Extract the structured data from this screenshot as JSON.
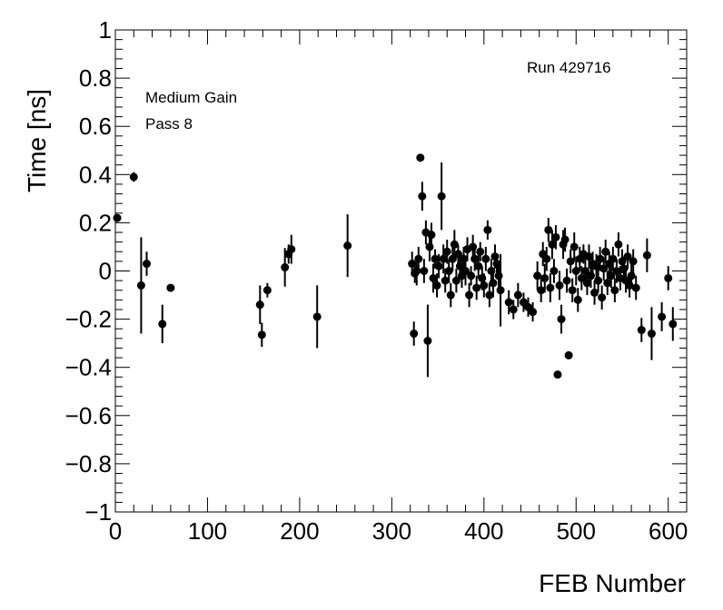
{
  "chart_data": {
    "type": "scatter",
    "xlabel": "FEB Number",
    "ylabel": "Time [ns]",
    "xlim": [
      0,
      620
    ],
    "ylim": [
      -1,
      1
    ],
    "x_ticks": [
      0,
      100,
      200,
      300,
      400,
      500,
      600
    ],
    "y_ticks": [
      -1,
      -0.8,
      -0.6,
      -0.4,
      -0.2,
      0,
      0.2,
      0.4,
      0.6,
      0.8,
      1
    ],
    "grid": false,
    "legend": "none",
    "annotations": [
      "Run 429716",
      "Medium Gain",
      "Pass 8"
    ],
    "marker_color": "#000000",
    "points": [
      {
        "x": 2,
        "y": 0.22,
        "err": 0.0
      },
      {
        "x": 20,
        "y": 0.39,
        "err": 0.02
      },
      {
        "x": 28,
        "y": -0.06,
        "err": 0.2
      },
      {
        "x": 34,
        "y": 0.03,
        "err": 0.05
      },
      {
        "x": 51,
        "y": -0.22,
        "err": 0.08
      },
      {
        "x": 60,
        "y": -0.07,
        "err": 0.0
      },
      {
        "x": 157,
        "y": -0.14,
        "err": 0.08
      },
      {
        "x": 159,
        "y": -0.265,
        "err": 0.05
      },
      {
        "x": 165,
        "y": -0.08,
        "err": 0.03
      },
      {
        "x": 184,
        "y": 0.015,
        "err": 0.08
      },
      {
        "x": 188,
        "y": 0.07,
        "err": 0.04
      },
      {
        "x": 191,
        "y": 0.09,
        "err": 0.06
      },
      {
        "x": 219,
        "y": -0.19,
        "err": 0.13
      },
      {
        "x": 252,
        "y": 0.105,
        "err": 0.13
      },
      {
        "x": 322,
        "y": 0.03,
        "err": 0.05
      },
      {
        "x": 324,
        "y": -0.26,
        "err": 0.05
      },
      {
        "x": 325,
        "y": -0.01,
        "err": 0.04
      },
      {
        "x": 327,
        "y": 0.0,
        "err": 0.06
      },
      {
        "x": 329,
        "y": 0.05,
        "err": 0.05
      },
      {
        "x": 331,
        "y": 0.47,
        "err": 0.0
      },
      {
        "x": 333,
        "y": 0.31,
        "err": 0.06
      },
      {
        "x": 335,
        "y": 0.0,
        "err": 0.05
      },
      {
        "x": 337,
        "y": 0.16,
        "err": 0.05
      },
      {
        "x": 339,
        "y": -0.29,
        "err": 0.15
      },
      {
        "x": 341,
        "y": 0.1,
        "err": 0.06
      },
      {
        "x": 343,
        "y": 0.15,
        "err": 0.05
      },
      {
        "x": 345,
        "y": -0.03,
        "err": 0.06
      },
      {
        "x": 347,
        "y": 0.05,
        "err": 0.04
      },
      {
        "x": 349,
        "y": -0.06,
        "err": 0.05
      },
      {
        "x": 351,
        "y": 0.02,
        "err": 0.05
      },
      {
        "x": 354,
        "y": 0.31,
        "err": 0.14
      },
      {
        "x": 356,
        "y": 0.05,
        "err": 0.06
      },
      {
        "x": 358,
        "y": -0.04,
        "err": 0.05
      },
      {
        "x": 360,
        "y": 0.08,
        "err": 0.05
      },
      {
        "x": 362,
        "y": 0.0,
        "err": 0.05
      },
      {
        "x": 364,
        "y": -0.1,
        "err": 0.05
      },
      {
        "x": 366,
        "y": 0.05,
        "err": 0.05
      },
      {
        "x": 368,
        "y": 0.11,
        "err": 0.06
      },
      {
        "x": 370,
        "y": -0.04,
        "err": 0.05
      },
      {
        "x": 372,
        "y": 0.07,
        "err": 0.04
      },
      {
        "x": 374,
        "y": 0.02,
        "err": 0.05
      },
      {
        "x": 376,
        "y": -0.02,
        "err": 0.05
      },
      {
        "x": 378,
        "y": 0.05,
        "err": 0.05
      },
      {
        "x": 380,
        "y": 0.0,
        "err": 0.06
      },
      {
        "x": 382,
        "y": 0.09,
        "err": 0.05
      },
      {
        "x": 384,
        "y": -0.1,
        "err": 0.05
      },
      {
        "x": 386,
        "y": -0.02,
        "err": 0.04
      },
      {
        "x": 388,
        "y": 0.1,
        "err": 0.05
      },
      {
        "x": 390,
        "y": 0.05,
        "err": 0.05
      },
      {
        "x": 392,
        "y": -0.07,
        "err": 0.05
      },
      {
        "x": 394,
        "y": 0.02,
        "err": 0.05
      },
      {
        "x": 396,
        "y": 0.08,
        "err": 0.04
      },
      {
        "x": 398,
        "y": -0.03,
        "err": 0.05
      },
      {
        "x": 400,
        "y": -0.06,
        "err": 0.05
      },
      {
        "x": 402,
        "y": 0.05,
        "err": 0.05
      },
      {
        "x": 404,
        "y": 0.17,
        "err": 0.04
      },
      {
        "x": 406,
        "y": -0.1,
        "err": 0.05
      },
      {
        "x": 408,
        "y": 0.0,
        "err": 0.05
      },
      {
        "x": 410,
        "y": -0.05,
        "err": 0.06
      },
      {
        "x": 412,
        "y": 0.06,
        "err": 0.05
      },
      {
        "x": 414,
        "y": 0.03,
        "err": 0.04
      },
      {
        "x": 416,
        "y": -0.02,
        "err": 0.06
      },
      {
        "x": 418,
        "y": -0.08,
        "err": 0.15
      },
      {
        "x": 427,
        "y": -0.13,
        "err": 0.05
      },
      {
        "x": 432,
        "y": -0.16,
        "err": 0.04
      },
      {
        "x": 437,
        "y": -0.1,
        "err": 0.05
      },
      {
        "x": 443,
        "y": -0.13,
        "err": 0.04
      },
      {
        "x": 448,
        "y": -0.15,
        "err": 0.04
      },
      {
        "x": 453,
        "y": -0.17,
        "err": 0.04
      },
      {
        "x": 458,
        "y": -0.02,
        "err": 0.06
      },
      {
        "x": 462,
        "y": -0.08,
        "err": 0.05
      },
      {
        "x": 464,
        "y": 0.07,
        "err": 0.05
      },
      {
        "x": 466,
        "y": -0.03,
        "err": 0.06
      },
      {
        "x": 468,
        "y": 0.05,
        "err": 0.05
      },
      {
        "x": 470,
        "y": 0.17,
        "err": 0.05
      },
      {
        "x": 472,
        "y": -0.07,
        "err": 0.06
      },
      {
        "x": 474,
        "y": 0.11,
        "err": 0.06
      },
      {
        "x": 476,
        "y": 0.0,
        "err": 0.05
      },
      {
        "x": 478,
        "y": 0.14,
        "err": 0.05
      },
      {
        "x": 480,
        "y": -0.43,
        "err": 0.0
      },
      {
        "x": 482,
        "y": -0.06,
        "err": 0.06
      },
      {
        "x": 484,
        "y": -0.2,
        "err": 0.06
      },
      {
        "x": 486,
        "y": 0.11,
        "err": 0.06
      },
      {
        "x": 488,
        "y": 0.13,
        "err": 0.05
      },
      {
        "x": 490,
        "y": -0.04,
        "err": 0.05
      },
      {
        "x": 492,
        "y": -0.35,
        "err": 0.0
      },
      {
        "x": 494,
        "y": 0.04,
        "err": 0.05
      },
      {
        "x": 496,
        "y": -0.08,
        "err": 0.05
      },
      {
        "x": 498,
        "y": 0.1,
        "err": 0.06
      },
      {
        "x": 500,
        "y": 0.0,
        "err": 0.06
      },
      {
        "x": 502,
        "y": -0.12,
        "err": 0.05
      },
      {
        "x": 504,
        "y": 0.05,
        "err": 0.05
      },
      {
        "x": 506,
        "y": -0.03,
        "err": 0.05
      },
      {
        "x": 508,
        "y": 0.07,
        "err": 0.04
      },
      {
        "x": 510,
        "y": 0.0,
        "err": 0.06
      },
      {
        "x": 512,
        "y": -0.05,
        "err": 0.05
      },
      {
        "x": 514,
        "y": 0.06,
        "err": 0.05
      },
      {
        "x": 516,
        "y": -0.02,
        "err": 0.05
      },
      {
        "x": 518,
        "y": 0.03,
        "err": 0.05
      },
      {
        "x": 520,
        "y": -0.09,
        "err": 0.05
      },
      {
        "x": 522,
        "y": 0.02,
        "err": 0.05
      },
      {
        "x": 524,
        "y": -0.04,
        "err": 0.05
      },
      {
        "x": 526,
        "y": 0.05,
        "err": 0.05
      },
      {
        "x": 528,
        "y": -0.11,
        "err": 0.05
      },
      {
        "x": 530,
        "y": 0.01,
        "err": 0.05
      },
      {
        "x": 532,
        "y": 0.08,
        "err": 0.05
      },
      {
        "x": 534,
        "y": -0.05,
        "err": 0.05
      },
      {
        "x": 536,
        "y": 0.03,
        "err": 0.05
      },
      {
        "x": 538,
        "y": -0.02,
        "err": 0.05
      },
      {
        "x": 540,
        "y": 0.05,
        "err": 0.05
      },
      {
        "x": 542,
        "y": -0.08,
        "err": 0.05
      },
      {
        "x": 544,
        "y": 0.0,
        "err": 0.05
      },
      {
        "x": 546,
        "y": 0.11,
        "err": 0.05
      },
      {
        "x": 548,
        "y": -0.03,
        "err": 0.05
      },
      {
        "x": 550,
        "y": 0.04,
        "err": 0.05
      },
      {
        "x": 552,
        "y": 0.01,
        "err": 0.05
      },
      {
        "x": 554,
        "y": -0.04,
        "err": 0.05
      },
      {
        "x": 556,
        "y": 0.06,
        "err": 0.05
      },
      {
        "x": 558,
        "y": -0.06,
        "err": 0.05
      },
      {
        "x": 560,
        "y": -0.02,
        "err": 0.05
      },
      {
        "x": 562,
        "y": 0.04,
        "err": 0.05
      },
      {
        "x": 565,
        "y": -0.07,
        "err": 0.05
      },
      {
        "x": 571,
        "y": -0.245,
        "err": 0.05
      },
      {
        "x": 577,
        "y": 0.065,
        "err": 0.07
      },
      {
        "x": 582,
        "y": -0.26,
        "err": 0.11
      },
      {
        "x": 593,
        "y": -0.19,
        "err": 0.06
      },
      {
        "x": 600,
        "y": -0.03,
        "err": 0.05
      },
      {
        "x": 605,
        "y": -0.22,
        "err": 0.07
      }
    ]
  }
}
